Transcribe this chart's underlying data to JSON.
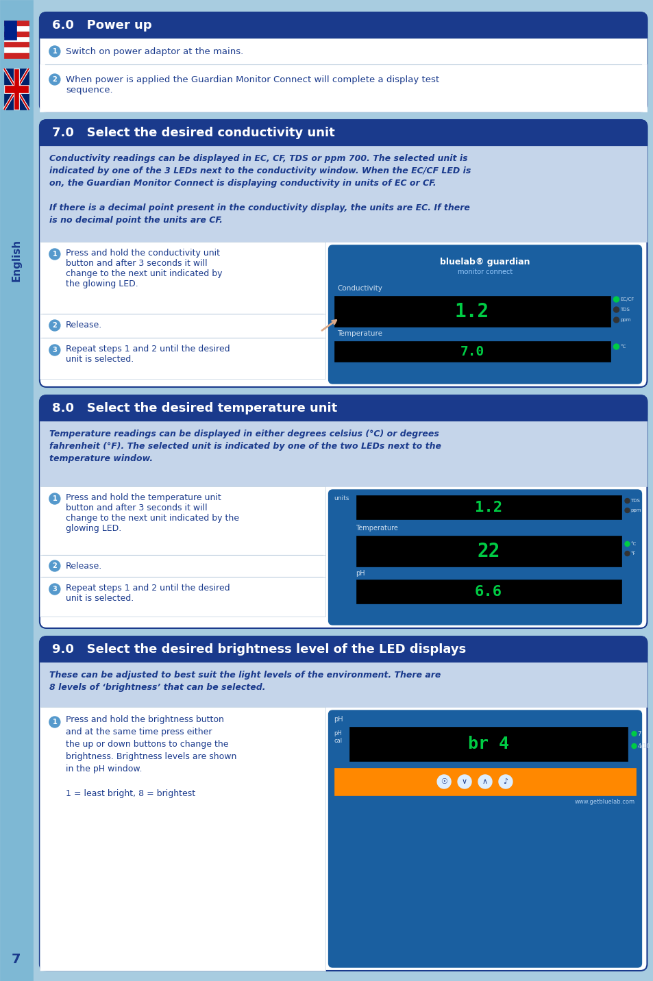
{
  "page_bg": "#a8cce0",
  "sidebar_bg": "#7eb8d4",
  "content_bg": "#ffffff",
  "section_header_bg": "#1a3a8c",
  "section_header_color": "#ffffff",
  "info_box_bg": "#b8c8e8",
  "step_row_bg": "#ffffff",
  "step_row_border": "#ccddee",
  "body_text_color": "#1a3a8c",
  "italic_text_color": "#1a3a8c",
  "page_number": "7",
  "sections": [
    {
      "number": "6.0",
      "title": "Power up",
      "steps": [
        {
          "num": 1,
          "text": "Switch on power adaptor at the mains."
        },
        {
          "num": 2,
          "text": "When power is applied the Guardian Monitor Connect will complete a display test\nsequence."
        }
      ],
      "info_text": null,
      "has_image": false
    },
    {
      "number": "7.0",
      "title": "Select the desired conductivity unit",
      "info_text": "Conductivity readings can be displayed in EC, CF, TDS or ppm 700. The selected unit is\nindicated by one of the 3 LEDs next to the conductivity window. When the EC/CF LED is\non, the Guardian Monitor Connect is displaying conductivity in units of EC or CF.\n\nIf there is a decimal point present in the conductivity display, the units are EC. If there\nis no decimal point the units are CF.",
      "steps": [
        {
          "num": 1,
          "text": "Press and hold the conductivity unit\nbutton and after 3 seconds it will\nchange to the next unit indicated by\nthe glowing LED."
        },
        {
          "num": 2,
          "text": "Release."
        },
        {
          "num": 3,
          "text": "Repeat steps 1 and 2 until the desired\nunit is selected."
        }
      ],
      "has_image": true,
      "image_side": "right"
    },
    {
      "number": "8.0",
      "title": "Select the desired temperature unit",
      "info_text": "Temperature readings can be displayed in either degrees celsius (°C) or degrees\nfahrenheit (°F). The selected unit is indicated by one of the two LEDs next to the\ntemperature window.",
      "steps": [
        {
          "num": 1,
          "text": "Press and hold the temperature unit\nbutton and after 3 seconds it will\nchange to the next unit indicated by the\nglowing LED."
        },
        {
          "num": 2,
          "text": "Release."
        },
        {
          "num": 3,
          "text": "Repeat steps 1 and 2 until the desired\nunit is selected."
        }
      ],
      "has_image": true,
      "image_side": "right"
    },
    {
      "number": "9.0",
      "title": "Select the desired brightness level of the LED displays",
      "info_text": "These can be adjusted to best suit the light levels of the environment. There are\n8 levels of ‘brightness’ that can be selected.",
      "steps": [
        {
          "num": 1,
          "text": "Press and hold the brightness button\nand at the same time press either\nthe up or down buttons to change the\nbrightness. Brightness levels are shown\nin the pH window.\n\n1 = least bright, 8 = brightest"
        }
      ],
      "has_image": true,
      "image_side": "right"
    }
  ]
}
